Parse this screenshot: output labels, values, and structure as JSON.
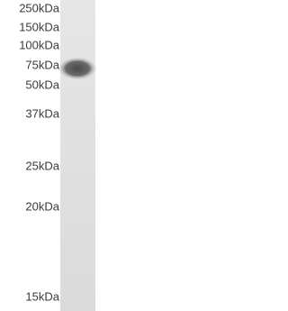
{
  "markers": [
    "250kDa",
    "150kDa",
    "100kDa",
    "75kDa",
    "50kDa",
    "37kDa",
    "25kDa",
    "20kDa",
    "15kDa"
  ]
}
